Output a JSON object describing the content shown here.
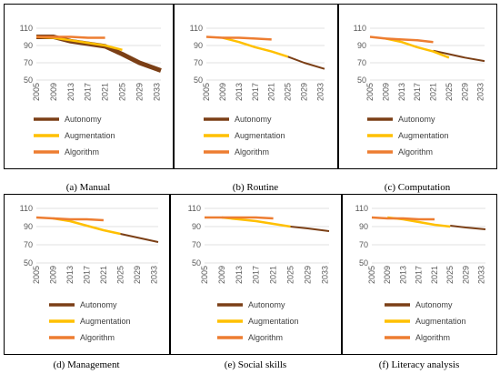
{
  "figure": {
    "panels": [
      {
        "caption": "(a) Manual"
      },
      {
        "caption": "(b) Routine"
      },
      {
        "caption": "(c) Computation"
      },
      {
        "caption": "(d) Management"
      },
      {
        "caption": "(e) Social skills"
      },
      {
        "caption": "(f) Literacy analysis"
      }
    ]
  },
  "colors": {
    "autonomy": "#7B3F16",
    "augmentation": "#FFC000",
    "algorithm": "#ED7D31"
  },
  "chart_data": [
    {
      "type": "line",
      "caption": "(a) Manual",
      "x_ticks": [
        "2005",
        "2009",
        "2013",
        "2017",
        "2021",
        "2025",
        "2029",
        "2033"
      ],
      "y_ticks": [
        "50",
        "70",
        "90",
        "110"
      ],
      "ylim": [
        50,
        110
      ],
      "legend": "bottom-left",
      "series": [
        {
          "name": "Autonomy",
          "color": "#7B3F16",
          "width": 5,
          "points": [
            [
              2005,
              100
            ],
            [
              2009,
              100
            ],
            [
              2013,
              95
            ],
            [
              2021,
              89
            ],
            [
              2025,
              80
            ],
            [
              2029,
              70
            ],
            [
              2034,
              61
            ]
          ]
        },
        {
          "name": "Augmentation",
          "color": "#FFC000",
          "width": 2.5,
          "points": [
            [
              2005,
              100
            ],
            [
              2009,
              99
            ],
            [
              2013,
              96
            ],
            [
              2017,
              93
            ],
            [
              2021,
              90
            ],
            [
              2025,
              85
            ]
          ]
        },
        {
          "name": "Algorithm",
          "color": "#ED7D31",
          "width": 2.5,
          "points": [
            [
              2005,
              100
            ],
            [
              2009,
              100
            ],
            [
              2013,
              100
            ],
            [
              2017,
              99
            ],
            [
              2021,
              99
            ]
          ]
        }
      ]
    },
    {
      "type": "line",
      "caption": "(b) Routine",
      "x_ticks": [
        "2005",
        "2009",
        "2013",
        "2017",
        "2021",
        "2025",
        "2029",
        "2033"
      ],
      "y_ticks": [
        "50",
        "70",
        "90",
        "110"
      ],
      "ylim": [
        50,
        110
      ],
      "legend": "bottom-left",
      "series": [
        {
          "name": "Autonomy",
          "color": "#7B3F16",
          "width": 2,
          "points": [
            [
              2025,
              77
            ],
            [
              2029,
              70
            ],
            [
              2034,
              63
            ]
          ]
        },
        {
          "name": "Augmentation",
          "color": "#FFC000",
          "width": 2.5,
          "points": [
            [
              2009,
              99
            ],
            [
              2013,
              94
            ],
            [
              2017,
              88
            ],
            [
              2021,
              83
            ],
            [
              2025,
              77
            ]
          ]
        },
        {
          "name": "Algorithm",
          "color": "#ED7D31",
          "width": 2.5,
          "points": [
            [
              2005,
              100
            ],
            [
              2009,
              99
            ],
            [
              2013,
              99
            ],
            [
              2017,
              98
            ],
            [
              2021,
              97
            ]
          ]
        }
      ]
    },
    {
      "type": "line",
      "caption": "(c) Computation",
      "x_ticks": [
        "2005",
        "2009",
        "2013",
        "2017",
        "2021",
        "2025",
        "2029",
        "2033"
      ],
      "y_ticks": [
        "50",
        "70",
        "90",
        "110"
      ],
      "ylim": [
        50,
        110
      ],
      "legend": "bottom-left",
      "series": [
        {
          "name": "Autonomy",
          "color": "#7B3F16",
          "width": 2,
          "points": [
            [
              2021,
              84
            ],
            [
              2025,
              80
            ],
            [
              2029,
              76
            ],
            [
              2034,
              72
            ]
          ]
        },
        {
          "name": "Augmentation",
          "color": "#FFC000",
          "width": 2.5,
          "points": [
            [
              2009,
              98
            ],
            [
              2013,
              94
            ],
            [
              2017,
              88
            ],
            [
              2021,
              83
            ],
            [
              2025,
              76
            ]
          ]
        },
        {
          "name": "Algorithm",
          "color": "#ED7D31",
          "width": 2.5,
          "points": [
            [
              2005,
              100
            ],
            [
              2009,
              98
            ],
            [
              2013,
              97
            ],
            [
              2017,
              96
            ],
            [
              2021,
              94
            ]
          ]
        }
      ]
    },
    {
      "type": "line",
      "caption": "(d) Management",
      "x_ticks": [
        "2005",
        "2009",
        "2013",
        "2017",
        "2021",
        "2025",
        "2029",
        "2033"
      ],
      "y_ticks": [
        "50",
        "70",
        "90",
        "110"
      ],
      "ylim": [
        50,
        110
      ],
      "legend": "bottom-left",
      "series": [
        {
          "name": "Autonomy",
          "color": "#7B3F16",
          "width": 2,
          "points": [
            [
              2025,
              82
            ],
            [
              2029,
              78
            ],
            [
              2034,
              73
            ]
          ]
        },
        {
          "name": "Augmentation",
          "color": "#FFC000",
          "width": 2.5,
          "points": [
            [
              2009,
              99
            ],
            [
              2013,
              96
            ],
            [
              2017,
              91
            ],
            [
              2021,
              86
            ],
            [
              2025,
              82
            ]
          ]
        },
        {
          "name": "Algorithm",
          "color": "#ED7D31",
          "width": 2.5,
          "points": [
            [
              2005,
              100
            ],
            [
              2009,
              99
            ],
            [
              2013,
              98
            ],
            [
              2017,
              98
            ],
            [
              2021,
              97
            ]
          ]
        }
      ]
    },
    {
      "type": "line",
      "caption": "(e) Social skills",
      "x_ticks": [
        "2005",
        "2009",
        "2013",
        "2017",
        "2021",
        "2025",
        "2029",
        "2033"
      ],
      "y_ticks": [
        "50",
        "70",
        "90",
        "110"
      ],
      "ylim": [
        50,
        110
      ],
      "legend": "bottom-left",
      "series": [
        {
          "name": "Autonomy",
          "color": "#7B3F16",
          "width": 2,
          "points": [
            [
              2025,
              90
            ],
            [
              2029,
              88
            ],
            [
              2034,
              85
            ]
          ]
        },
        {
          "name": "Augmentation",
          "color": "#FFC000",
          "width": 2.5,
          "points": [
            [
              2009,
              100
            ],
            [
              2013,
              98
            ],
            [
              2017,
              96
            ],
            [
              2021,
              93
            ],
            [
              2025,
              90
            ]
          ]
        },
        {
          "name": "Algorithm",
          "color": "#ED7D31",
          "width": 2.5,
          "points": [
            [
              2005,
              100
            ],
            [
              2009,
              100
            ],
            [
              2013,
              100
            ],
            [
              2017,
              100
            ],
            [
              2021,
              99
            ]
          ]
        }
      ]
    },
    {
      "type": "line",
      "caption": "(f) Literacy analysis",
      "x_ticks": [
        "2005",
        "2009",
        "2013",
        "2017",
        "2021",
        "2025",
        "2029",
        "2033"
      ],
      "y_ticks": [
        "50",
        "70",
        "90",
        "110"
      ],
      "ylim": [
        50,
        110
      ],
      "legend": "bottom-left",
      "series": [
        {
          "name": "Autonomy",
          "color": "#7B3F16",
          "width": 2,
          "points": [
            [
              2025,
              91
            ],
            [
              2029,
              89
            ],
            [
              2034,
              87
            ]
          ]
        },
        {
          "name": "Augmentation",
          "color": "#FFC000",
          "width": 2.5,
          "points": [
            [
              2009,
              100
            ],
            [
              2013,
              98
            ],
            [
              2017,
              95
            ],
            [
              2021,
              92
            ],
            [
              2025,
              90
            ]
          ]
        },
        {
          "name": "Algorithm",
          "color": "#ED7D31",
          "width": 2.5,
          "points": [
            [
              2005,
              100
            ],
            [
              2009,
              99
            ],
            [
              2013,
              99
            ],
            [
              2017,
              98
            ],
            [
              2021,
              98
            ]
          ]
        }
      ]
    }
  ]
}
